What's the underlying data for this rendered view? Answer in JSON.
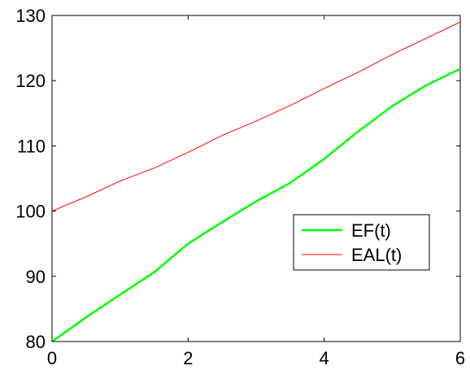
{
  "chart_data": {
    "type": "line",
    "title": "",
    "xlabel": "",
    "ylabel": "",
    "xlim": [
      0,
      6
    ],
    "ylim": [
      80,
      130
    ],
    "xticks": [
      0,
      2,
      4,
      6
    ],
    "yticks": [
      80,
      90,
      100,
      110,
      120,
      130
    ],
    "grid": false,
    "legend_position": "center-right",
    "series": [
      {
        "name": "EF(t)",
        "color": "#00ff00",
        "x": [
          0,
          0.5,
          1,
          1.5,
          2,
          2.5,
          3,
          3.5,
          4,
          4.5,
          5,
          5.5,
          6
        ],
        "y": [
          80,
          83.7,
          87.2,
          90.6,
          95.0,
          98.3,
          101.5,
          104.3,
          108.0,
          112.2,
          116.1,
          119.3,
          121.8
        ]
      },
      {
        "name": "EAL(t)",
        "color": "#ff0000",
        "x": [
          0,
          0.5,
          1,
          1.5,
          2,
          2.5,
          3,
          3.5,
          4,
          4.5,
          5,
          5.5,
          6
        ],
        "y": [
          100,
          102.2,
          104.6,
          106.6,
          109.0,
          111.6,
          113.8,
          116.2,
          118.8,
          121.3,
          124.0,
          126.5,
          129.0
        ]
      }
    ]
  }
}
